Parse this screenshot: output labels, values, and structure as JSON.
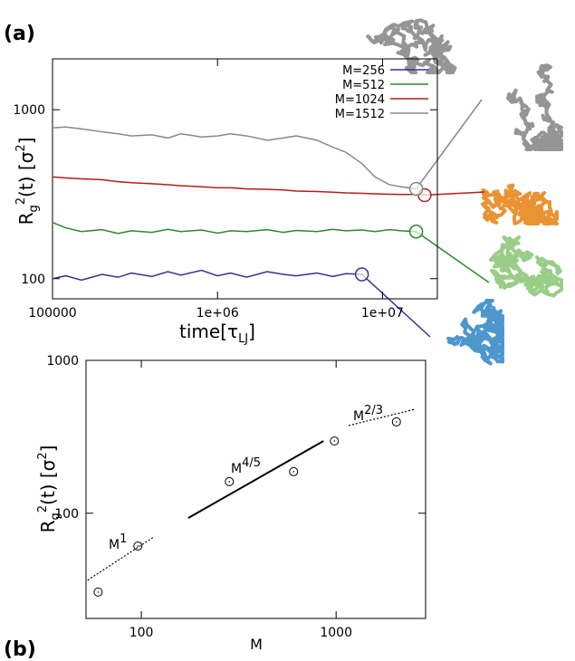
{
  "chart_data": [
    {
      "type": "line",
      "panel": "(a)",
      "x_label": [
        "time[τ",
        "LJ",
        "]"
      ],
      "y_label": [
        "R",
        "g",
        "2",
        "(t) [σ",
        "2",
        "]"
      ],
      "x": [
        100000,
        120000,
        150000,
        200000,
        250000,
        300000,
        400000,
        500000,
        600000,
        800000,
        1000000,
        1200000,
        1500000,
        2000000,
        2500000,
        3000000,
        4000000,
        5000000,
        6000000,
        7500000,
        9000000,
        11000000,
        13000000,
        16000000,
        18000000
      ],
      "xlim": [
        100000,
        21500000
      ],
      "ylim": [
        76,
        2000
      ],
      "log_x": true,
      "log_y": true,
      "grid": false,
      "xticks": [
        100000,
        {
          "value": 1000000,
          "label": "1e+06"
        },
        {
          "value": 10000000,
          "label": "1e+07"
        }
      ],
      "yticks": [
        100,
        1000
      ],
      "legend": "top-right",
      "series": [
        {
          "name": "M=256",
          "color": "#3b2f94",
          "values": [
            100,
            104,
            98,
            106,
            102,
            108,
            103,
            110,
            105,
            112,
            104,
            108,
            102,
            110,
            106,
            104,
            108,
            103,
            107,
            106,
            null,
            null,
            null,
            null,
            null
          ]
        },
        {
          "name": "M=512",
          "color": "#2a8a2a",
          "values": [
            215,
            200,
            190,
            195,
            185,
            192,
            188,
            196,
            190,
            194,
            186,
            192,
            190,
            195,
            188,
            193,
            190,
            196,
            192,
            194,
            190,
            195,
            192,
            190,
            null
          ]
        },
        {
          "name": "M=1024",
          "color": "#b01e1e",
          "values": [
            400,
            395,
            390,
            385,
            375,
            370,
            365,
            360,
            355,
            350,
            345,
            345,
            340,
            338,
            335,
            330,
            328,
            325,
            322,
            320,
            318,
            316,
            315,
            315,
            312
          ]
        },
        {
          "name": "M=1512",
          "color": "#888888",
          "values": [
            780,
            790,
            770,
            740,
            720,
            700,
            710,
            680,
            720,
            690,
            700,
            720,
            700,
            660,
            680,
            700,
            660,
            600,
            560,
            480,
            400,
            360,
            350,
            340,
            null
          ]
        }
      ]
    },
    {
      "type": "scatter",
      "panel": "(b)",
      "x_label": "M",
      "y_label": [
        "R",
        "g",
        "2",
        "(t) [σ",
        "2",
        "]"
      ],
      "x": [
        60,
        96,
        283,
        605,
        980,
        2040
      ],
      "values": [
        30.5,
        61,
        161,
        187,
        297,
        396
      ],
      "xlim": [
        52,
        2880
      ],
      "ylim": [
        20.5,
        1000
      ],
      "log_x": true,
      "log_y": true,
      "grid": false,
      "xticks": [
        100,
        1000
      ],
      "yticks": [
        100,
        1000
      ],
      "color": "#000000",
      "fits": [
        {
          "label": [
            "M",
            "1"
          ],
          "style": "dotted",
          "x": [
            53,
            116
          ],
          "values": [
            36.5,
            70
          ]
        },
        {
          "label": [
            "M",
            "4/5"
          ],
          "style": "solid",
          "x": [
            174,
            862
          ],
          "values": [
            93,
            297
          ]
        },
        {
          "label": [
            "M",
            "2/3"
          ],
          "style": "dotted",
          "x": [
            1160,
            2540
          ],
          "values": [
            375,
            479
          ]
        }
      ]
    }
  ]
}
